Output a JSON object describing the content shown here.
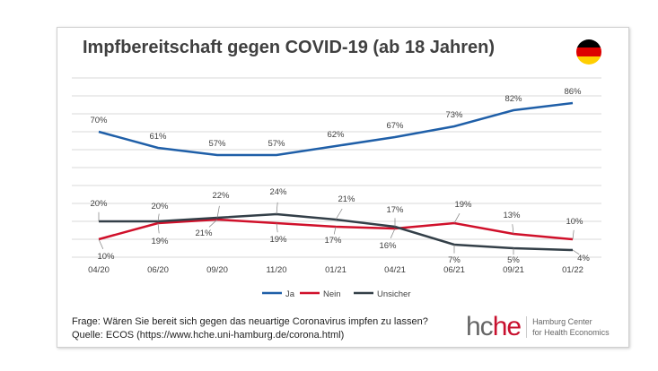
{
  "chart_data": {
    "type": "line",
    "title": "Impfbereitschaft gegen COVID-19 (ab 18 Jahren)",
    "categories": [
      "04/20",
      "06/20",
      "09/20",
      "11/20",
      "01/21",
      "04/21",
      "06/21",
      "09/21",
      "01/22"
    ],
    "ylim": [
      0,
      100
    ],
    "grid": true,
    "legend": "bottom",
    "series": [
      {
        "name": "Ja",
        "color": "#1f5fa8",
        "values": [
          70,
          61,
          57,
          57,
          62,
          67,
          73,
          82,
          86
        ]
      },
      {
        "name": "Nein",
        "color": "#d0102a",
        "values": [
          10,
          19,
          21,
          19,
          17,
          16,
          19,
          13,
          10
        ]
      },
      {
        "name": "Unsicher",
        "color": "#333f48",
        "values": [
          20,
          20,
          22,
          24,
          21,
          17,
          7,
          5,
          4
        ]
      }
    ]
  },
  "footer": {
    "question": "Frage: Wären Sie bereit sich gegen das neuartige Coronavirus impfen zu lassen?",
    "source": "Quelle: ECOS (https://www.hche.uni-hamburg.de/corona.html)"
  },
  "logo": {
    "hc": "hc",
    "he": "he",
    "line1": "Hamburg Center",
    "line2": "for Health Economics"
  },
  "flag_colors": [
    "#000000",
    "#dd0000",
    "#ffce00"
  ]
}
